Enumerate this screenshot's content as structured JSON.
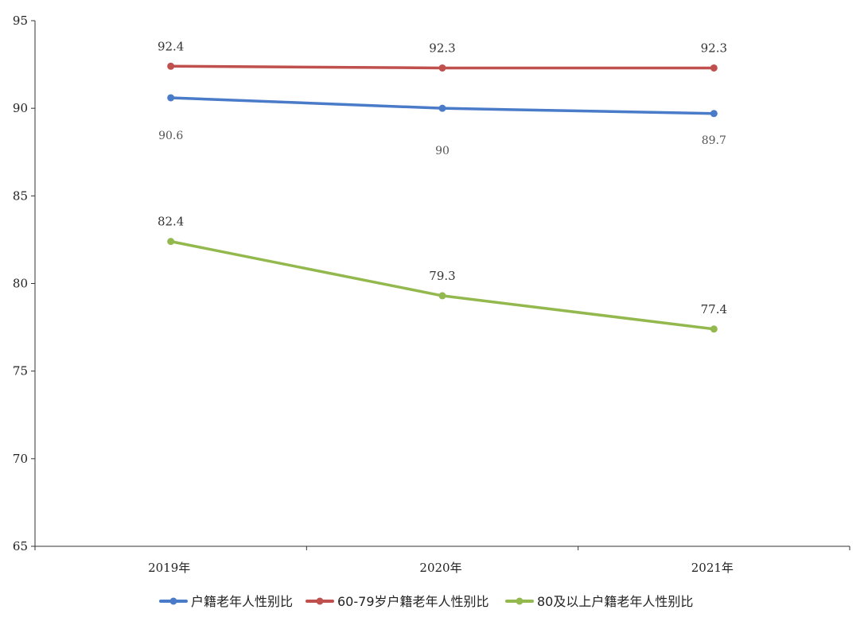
{
  "chart_data": {
    "type": "line",
    "categories": [
      "2019年",
      "2020年",
      "2021年"
    ],
    "ylim": [
      65,
      95
    ],
    "yticks": [
      65,
      70,
      75,
      80,
      85,
      90,
      95
    ],
    "grid": false,
    "legend_position": "bottom",
    "series": [
      {
        "name": "户籍老年人性别比",
        "color": "#4a7bc8",
        "values": [
          90.6,
          90,
          89.7
        ],
        "labels": [
          "90.6",
          "90",
          "89.7"
        ],
        "label_position": "below"
      },
      {
        "name": "60-79岁户籍老年人性别比",
        "color": "#c0504d",
        "values": [
          92.4,
          92.3,
          92.3
        ],
        "labels": [
          "92.4",
          "92.3",
          "92.3"
        ],
        "label_position": "above"
      },
      {
        "name": "80及以上户籍老年人性别比",
        "color": "#93b84e",
        "values": [
          82.4,
          79.3,
          77.4
        ],
        "labels": [
          "82.4",
          "79.3",
          "77.4"
        ],
        "label_position": "above"
      }
    ]
  }
}
